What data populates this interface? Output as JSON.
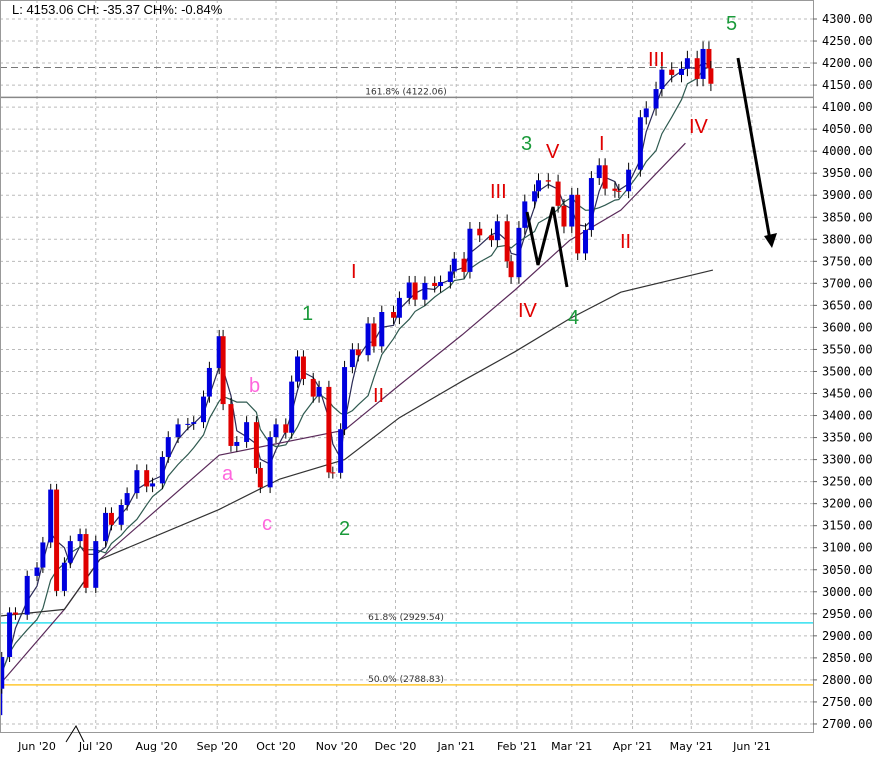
{
  "header": {
    "readout": "L: 4153.06 CH: -35.37 CH%: -0.84%"
  },
  "chart_data": {
    "type": "candlestick",
    "ylim": [
      2700,
      4300
    ],
    "y_ticks": [
      "4300.00",
      "4250.00",
      "4200.00",
      "4150.00",
      "4100.00",
      "4050.00",
      "4000.00",
      "3950.00",
      "3900.00",
      "3850.00",
      "3800.00",
      "3750.00",
      "3700.00",
      "3650.00",
      "3600.00",
      "3550.00",
      "3500.00",
      "3450.00",
      "3400.00",
      "3350.00",
      "3300.00",
      "3250.00",
      "3200.00",
      "3150.00",
      "3100.00",
      "3050.00",
      "3000.00",
      "2950.00",
      "2900.00",
      "2850.00",
      "2800.00",
      "2750.00",
      "2700.00"
    ],
    "x_ticks": [
      {
        "date": "2020-06-01",
        "label": "Jun '20"
      },
      {
        "date": "2020-07-01",
        "label": "Jul '20"
      },
      {
        "date": "2020-08-01",
        "label": "Aug '20"
      },
      {
        "date": "2020-09-01",
        "label": "Sep '20"
      },
      {
        "date": "2020-10-01",
        "label": "Oct '20"
      },
      {
        "date": "2020-11-01",
        "label": "Nov '20"
      },
      {
        "date": "2020-12-01",
        "label": "Dec '20"
      },
      {
        "date": "2021-01-01",
        "label": "Jan '21"
      },
      {
        "date": "2021-02-01",
        "label": "Feb '21"
      },
      {
        "date": "2021-03-01",
        "label": "Mar '21"
      },
      {
        "date": "2021-04-01",
        "label": "Apr '21"
      },
      {
        "date": "2021-05-01",
        "label": "May '21"
      },
      {
        "date": "2021-06-01",
        "label": "Jun '21"
      }
    ],
    "grid": true,
    "colors": {
      "up": "#0000dd",
      "down": "#e00000",
      "ma_fast": "#2a2a55",
      "ma_mid": "#2f5a50",
      "ma_slow": "#5a2a5a",
      "ma_long": "#333333",
      "fib_618": "#33e0f0",
      "fib_500": "#ffc830",
      "fib_1618": "#888888"
    },
    "closes": [
      [
        "2020-05-13",
        2780
      ],
      [
        "2020-05-14",
        2852
      ],
      [
        "2020-05-18",
        2953
      ],
      [
        "2020-05-21",
        2948
      ],
      [
        "2020-05-27",
        3036
      ],
      [
        "2020-06-01",
        3055
      ],
      [
        "2020-06-04",
        3112
      ],
      [
        "2020-06-08",
        3232
      ],
      [
        "2020-06-11",
        3002
      ],
      [
        "2020-06-15",
        3066
      ],
      [
        "2020-06-18",
        3115
      ],
      [
        "2020-06-23",
        3131
      ],
      [
        "2020-06-26",
        3009
      ],
      [
        "2020-07-01",
        3115
      ],
      [
        "2020-07-06",
        3179
      ],
      [
        "2020-07-09",
        3152
      ],
      [
        "2020-07-14",
        3197
      ],
      [
        "2020-07-17",
        3224
      ],
      [
        "2020-07-22",
        3276
      ],
      [
        "2020-07-27",
        3239
      ],
      [
        "2020-07-30",
        3246
      ],
      [
        "2020-08-04",
        3306
      ],
      [
        "2020-08-07",
        3351
      ],
      [
        "2020-08-12",
        3380
      ],
      [
        "2020-08-17",
        3381
      ],
      [
        "2020-08-20",
        3385
      ],
      [
        "2020-08-25",
        3443
      ],
      [
        "2020-08-28",
        3508
      ],
      [
        "2020-09-02",
        3580
      ],
      [
        "2020-09-04",
        3426
      ],
      [
        "2020-09-08",
        3331
      ],
      [
        "2020-09-11",
        3340
      ],
      [
        "2020-09-16",
        3385
      ],
      [
        "2020-09-21",
        3281
      ],
      [
        "2020-09-23",
        3237
      ],
      [
        "2020-09-28",
        3351
      ],
      [
        "2020-10-01",
        3380
      ],
      [
        "2020-10-06",
        3361
      ],
      [
        "2020-10-09",
        3477
      ],
      [
        "2020-10-12",
        3534
      ],
      [
        "2020-10-15",
        3483
      ],
      [
        "2020-10-20",
        3443
      ],
      [
        "2020-10-23",
        3465
      ],
      [
        "2020-10-28",
        3271
      ],
      [
        "2020-10-30",
        3270
      ],
      [
        "2020-11-03",
        3369
      ],
      [
        "2020-11-05",
        3510
      ],
      [
        "2020-11-09",
        3550
      ],
      [
        "2020-11-12",
        3537
      ],
      [
        "2020-11-17",
        3609
      ],
      [
        "2020-11-20",
        3557
      ],
      [
        "2020-11-24",
        3635
      ],
      [
        "2020-11-30",
        3622
      ],
      [
        "2020-12-03",
        3667
      ],
      [
        "2020-12-08",
        3702
      ],
      [
        "2020-12-11",
        3663
      ],
      [
        "2020-12-16",
        3701
      ],
      [
        "2020-12-21",
        3694
      ],
      [
        "2020-12-24",
        3703
      ],
      [
        "2020-12-29",
        3727
      ],
      [
        "2020-12-31",
        3756
      ],
      [
        "2021-01-05",
        3726
      ],
      [
        "2021-01-08",
        3824
      ],
      [
        "2021-01-13",
        3809
      ],
      [
        "2021-01-19",
        3798
      ],
      [
        "2021-01-22",
        3841
      ],
      [
        "2021-01-27",
        3750
      ],
      [
        "2021-01-29",
        3714
      ],
      [
        "2021-02-02",
        3826
      ],
      [
        "2021-02-05",
        3886
      ],
      [
        "2021-02-10",
        3909
      ],
      [
        "2021-02-12",
        3934
      ],
      [
        "2021-02-17",
        3931
      ],
      [
        "2021-02-22",
        3876
      ],
      [
        "2021-02-25",
        3829
      ],
      [
        "2021-03-01",
        3901
      ],
      [
        "2021-03-04",
        3768
      ],
      [
        "2021-03-08",
        3821
      ],
      [
        "2021-03-11",
        3939
      ],
      [
        "2021-03-15",
        3968
      ],
      [
        "2021-03-18",
        3915
      ],
      [
        "2021-03-23",
        3910
      ],
      [
        "2021-03-25",
        3909
      ],
      [
        "2021-03-30",
        3958
      ],
      [
        "2021-04-05",
        4077
      ],
      [
        "2021-04-08",
        4097
      ],
      [
        "2021-04-13",
        4141
      ],
      [
        "2021-04-16",
        4185
      ],
      [
        "2021-04-21",
        4173
      ],
      [
        "2021-04-26",
        4187
      ],
      [
        "2021-04-29",
        4211
      ],
      [
        "2021-05-04",
        4164
      ],
      [
        "2021-05-07",
        4232
      ],
      [
        "2021-05-10",
        4188
      ],
      [
        "2021-05-11",
        4153.06
      ]
    ],
    "ma_slow": [
      [
        "2020-05-15",
        2800
      ],
      [
        "2020-06-15",
        2960
      ],
      [
        "2020-07-03",
        3073
      ],
      [
        "2020-09-02",
        3310
      ],
      [
        "2020-11-05",
        3367
      ],
      [
        "2020-12-03",
        3469
      ],
      [
        "2021-01-04",
        3583
      ],
      [
        "2021-01-31",
        3685
      ],
      [
        "2021-02-28",
        3798
      ],
      [
        "2021-03-26",
        3866
      ],
      [
        "2021-04-28",
        4018
      ]
    ],
    "ma_long": [
      [
        "2020-05-13",
        2945
      ],
      [
        "2020-06-15",
        2960
      ],
      [
        "2020-07-03",
        3073
      ],
      [
        "2020-09-02",
        3187
      ],
      [
        "2020-10-03",
        3256
      ],
      [
        "2020-11-05",
        3300
      ],
      [
        "2020-12-03",
        3395
      ],
      [
        "2021-01-04",
        3478
      ],
      [
        "2021-01-31",
        3545
      ],
      [
        "2021-02-28",
        3620
      ],
      [
        "2021-03-26",
        3680
      ],
      [
        "2021-05-12",
        3730
      ]
    ],
    "levels": [
      {
        "label": "161.8% (4122.06)",
        "value": 4122.06,
        "style": "solid",
        "color": "#888888"
      },
      {
        "label": "61.8% (2929.54)",
        "value": 2929.54,
        "style": "solid",
        "color": "#33e0f0"
      },
      {
        "label": "50.0% (2788.83)",
        "value": 2788.83,
        "style": "solid",
        "color": "#ffc830"
      },
      {
        "label": "",
        "value": 4190,
        "style": "dashed",
        "color": "#777777"
      }
    ],
    "annotations": {
      "green": [
        "5",
        "3",
        "4",
        "1",
        "2"
      ],
      "red": [
        "III",
        "IV",
        "I",
        "II",
        "V",
        "III",
        "IV",
        "I",
        "II"
      ],
      "pink": [
        "b",
        "a",
        "c"
      ]
    }
  }
}
